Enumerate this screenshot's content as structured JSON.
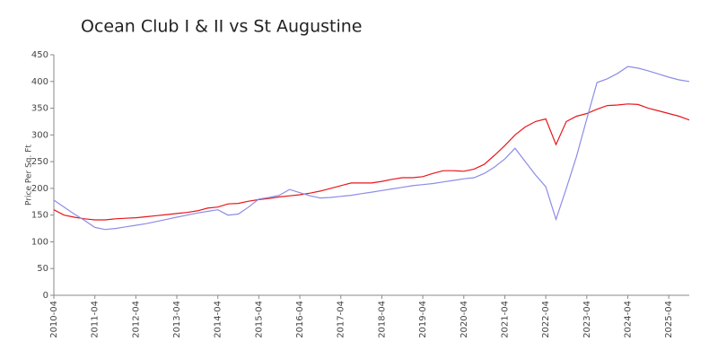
{
  "chart_data": {
    "type": "line",
    "title": "Ocean Club I & II vs St Augustine",
    "ylabel": "Price Per Sq. Ft",
    "x": [
      "2010-04",
      "2010-07",
      "2010-10",
      "2011-01",
      "2011-04",
      "2011-07",
      "2011-10",
      "2012-01",
      "2012-04",
      "2012-07",
      "2012-10",
      "2013-01",
      "2013-04",
      "2013-07",
      "2013-10",
      "2014-01",
      "2014-04",
      "2014-07",
      "2014-10",
      "2015-01",
      "2015-04",
      "2015-07",
      "2015-10",
      "2016-01",
      "2016-04",
      "2016-07",
      "2016-10",
      "2017-01",
      "2017-04",
      "2017-07",
      "2017-10",
      "2018-01",
      "2018-04",
      "2018-07",
      "2018-10",
      "2019-01",
      "2019-04",
      "2019-07",
      "2019-10",
      "2020-01",
      "2020-04",
      "2020-07",
      "2020-10",
      "2021-01",
      "2021-04",
      "2021-07",
      "2021-10",
      "2022-01",
      "2022-04",
      "2022-07",
      "2022-10",
      "2023-01",
      "2023-04",
      "2023-07",
      "2023-10",
      "2024-01",
      "2024-04",
      "2024-07",
      "2024-10",
      "2025-01",
      "2025-04",
      "2025-07",
      "2025-10"
    ],
    "series": [
      {
        "color": "#e8161c",
        "values": [
          160,
          150,
          146,
          143,
          141,
          141,
          143,
          144,
          145,
          147,
          149,
          151,
          153,
          155,
          158,
          163,
          165,
          171,
          172,
          176,
          179,
          181,
          184,
          186,
          188,
          191,
          195,
          200,
          205,
          210,
          210,
          210,
          213,
          217,
          220,
          220,
          222,
          228,
          233,
          233,
          232,
          236,
          245,
          262,
          280,
          300,
          315,
          325,
          330,
          282,
          325,
          335,
          340,
          348,
          355,
          356,
          358,
          357,
          350,
          345,
          340,
          335,
          328
        ]
      },
      {
        "color": "#8c8ce8",
        "values": [
          178,
          165,
          152,
          140,
          127,
          123,
          125,
          128,
          131,
          134,
          138,
          142,
          146,
          150,
          154,
          157,
          160,
          150,
          152,
          165,
          180,
          183,
          187,
          198,
          192,
          186,
          182,
          183,
          185,
          187,
          190,
          193,
          196,
          199,
          202,
          205,
          207,
          209,
          212,
          215,
          218,
          220,
          228,
          240,
          255,
          275,
          250,
          225,
          203,
          142,
          200,
          260,
          330,
          398,
          405,
          415,
          428,
          425,
          420,
          414,
          408,
          403,
          400
        ]
      }
    ],
    "xlim": [
      "2010-04",
      "2025-10"
    ],
    "xticks": [
      "2010-04",
      "2011-04",
      "2012-04",
      "2013-04",
      "2014-04",
      "2015-04",
      "2016-04",
      "2017-04",
      "2018-04",
      "2019-04",
      "2020-04",
      "2021-04",
      "2022-04",
      "2023-04",
      "2024-04",
      "2025-04"
    ],
    "ylim": [
      0,
      450
    ],
    "yticks": [
      0,
      50,
      100,
      150,
      200,
      250,
      300,
      350,
      400,
      450
    ]
  }
}
